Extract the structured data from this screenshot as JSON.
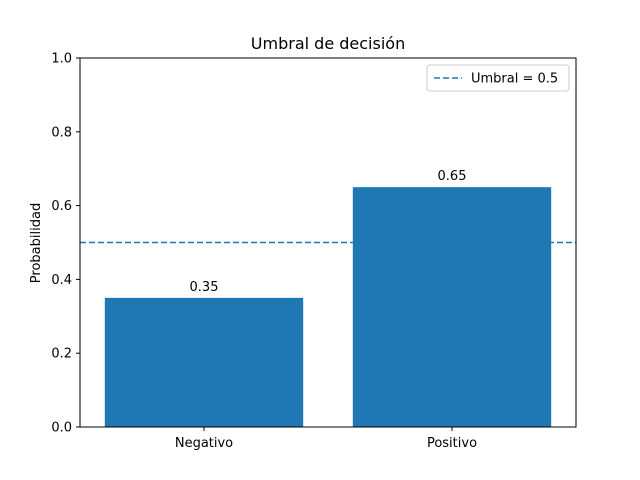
{
  "chart_data": {
    "type": "bar",
    "title": "Umbral de decisión",
    "xlabel": "",
    "ylabel": "Probabilidad",
    "categories": [
      "Negativo",
      "Positivo"
    ],
    "values": [
      0.35,
      0.65
    ],
    "data_labels": [
      "0.35",
      "0.65"
    ],
    "ylim": [
      0,
      1.0
    ],
    "yticks": [
      0.0,
      0.2,
      0.4,
      0.6,
      0.8,
      1.0
    ],
    "ytick_labels": [
      "0.0",
      "0.2",
      "0.4",
      "0.6",
      "0.8",
      "1.0"
    ],
    "bar_color": "#1f77b4",
    "grid": false,
    "threshold": {
      "value": 0.5,
      "style": "dashed",
      "color": "#1f77b4",
      "legend_label": "Umbral = 0.5"
    },
    "legend_position": "top-right"
  }
}
